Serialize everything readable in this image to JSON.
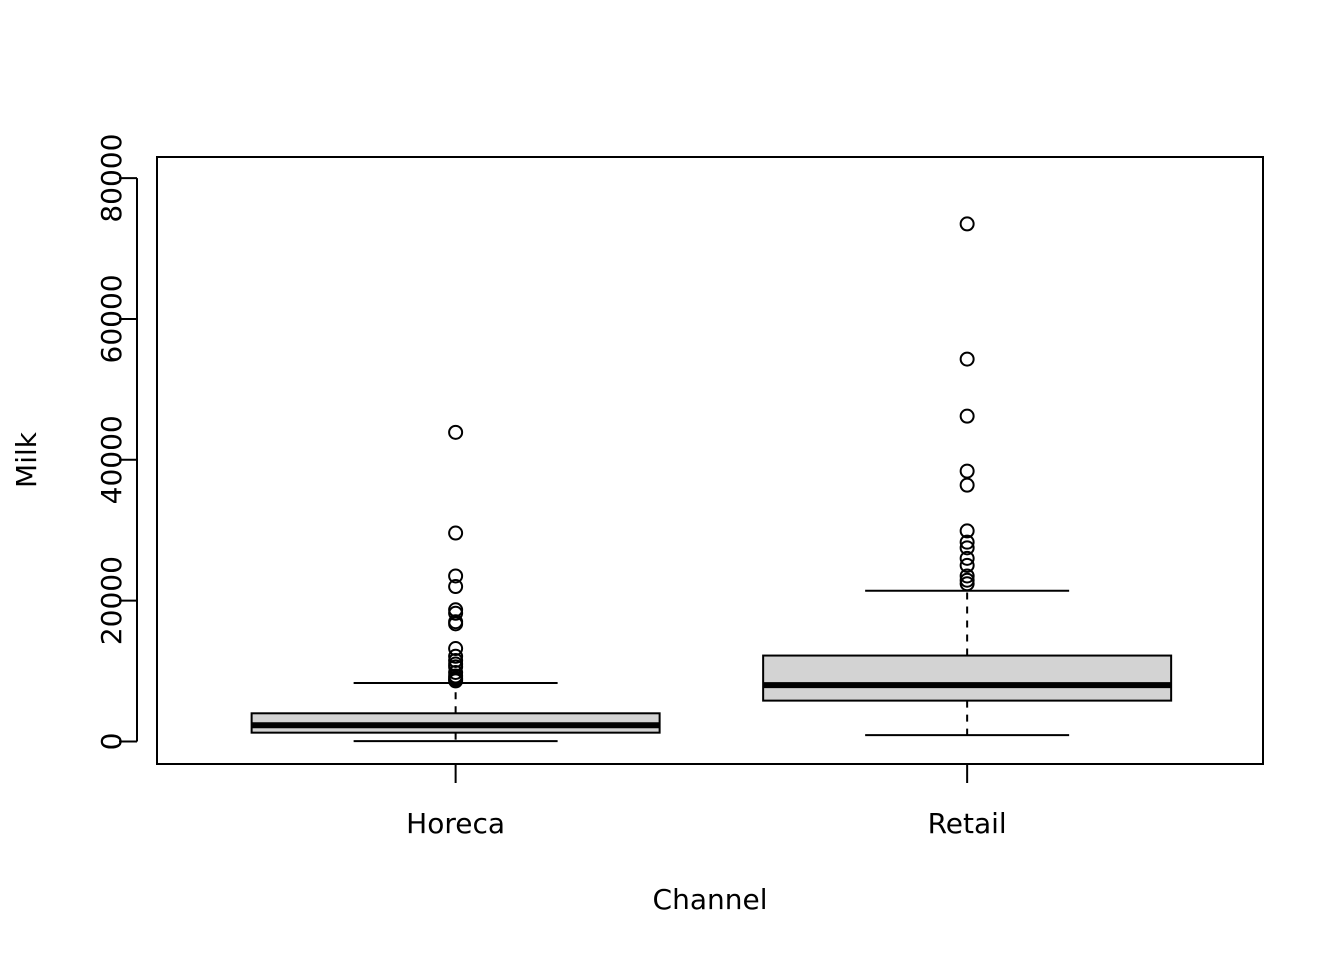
{
  "chart_data": {
    "type": "box",
    "xlabel": "Channel",
    "ylabel": "Milk",
    "ylim": [
      -3200,
      83000
    ],
    "yticks": [
      {
        "value": 0,
        "label": "0"
      },
      {
        "value": 20000,
        "label": "20000"
      },
      {
        "value": 40000,
        "label": "40000"
      },
      {
        "value": 60000,
        "label": "60000"
      },
      {
        "value": 80000,
        "label": "80000"
      }
    ],
    "box_fill": "#d3d3d3",
    "categories": [
      "Horeca",
      "Retail"
    ],
    "series": [
      {
        "category": "Horeca",
        "whisker_low": 55,
        "q1": 1250,
        "median": 2300,
        "q3": 4000,
        "whisker_high": 8300,
        "outliers": [
          43900,
          29600,
          23500,
          22000,
          18700,
          18200,
          17000,
          16700,
          13200,
          12100,
          11500,
          11000,
          10600,
          9800,
          9300,
          9000,
          8800,
          8600
        ]
      },
      {
        "category": "Retail",
        "whisker_low": 900,
        "q1": 5800,
        "median": 8000,
        "q3": 12200,
        "whisker_high": 21400,
        "outliers": [
          73500,
          54300,
          46200,
          38400,
          36400,
          29900,
          28300,
          27500,
          26000,
          25000,
          23500,
          22900,
          22400
        ]
      }
    ]
  }
}
